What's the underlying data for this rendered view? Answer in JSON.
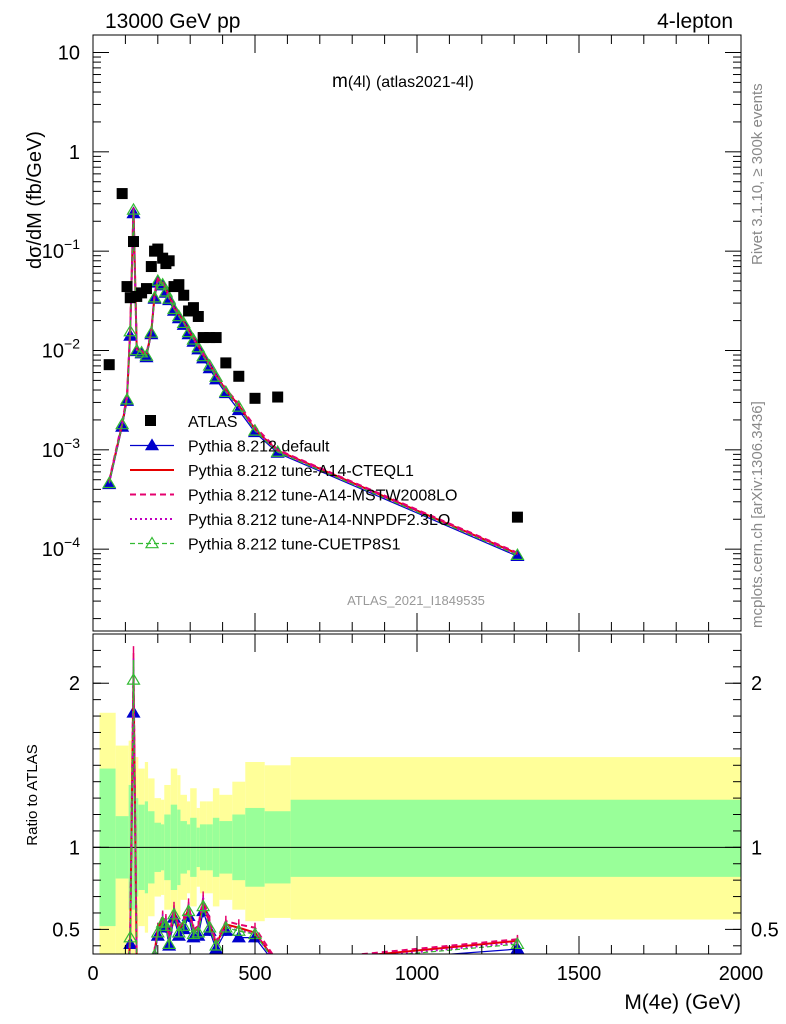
{
  "header": {
    "left": "13000 GeV pp",
    "right": "4-lepton",
    "plot_title_main": "m",
    "plot_title_sub": "(4l)",
    "plot_title_tag": "(atlas2021-4l)",
    "analysis_id": "ATLAS_2021_I1849535"
  },
  "side_labels": {
    "rivet": "Rivet 3.1.10, ≥ 300k events",
    "mcplots": "mcplots.cern.ch [arXiv:1306.3436]"
  },
  "axes": {
    "main_ylabel": "dσ/dM (fb/GeV)",
    "ratio_ylabel": "Ratio to ATLAS",
    "xlabel": "M(4e) (GeV)",
    "x_ticks": [
      "0",
      "500",
      "1000",
      "1500",
      "2000"
    ],
    "main_y_ticks": [
      "10",
      "1",
      "10",
      "10",
      "10",
      "10"
    ],
    "main_y_exps": [
      "",
      "",
      "−1",
      "−2",
      "−3",
      "−4"
    ],
    "ratio_y_ticks": [
      "2",
      "1",
      "0.5"
    ]
  },
  "chart_data": {
    "type": "line",
    "xlim": [
      0,
      2000
    ],
    "ylim_main": [
      1.5e-05,
      15
    ],
    "yscale_main": "log",
    "ylim_ratio": [
      0.35,
      2.3
    ],
    "legend_position": "lower-left",
    "series": [
      {
        "name": "ATLAS",
        "style": "data",
        "color": "#000000",
        "x": [
          50,
          90,
          105,
          115,
          125,
          135,
          150,
          165,
          180,
          190,
          200,
          215,
          225,
          235,
          250,
          265,
          280,
          295,
          310,
          325,
          340,
          360,
          380,
          410,
          450,
          500,
          570,
          1310
        ],
        "y": [
          0.0072,
          0.38,
          0.044,
          0.034,
          0.125,
          0.035,
          0.038,
          0.042,
          0.07,
          0.1,
          0.105,
          0.085,
          0.075,
          0.08,
          0.044,
          0.046,
          0.036,
          0.025,
          0.027,
          0.022,
          0.0135,
          0.0135,
          0.0135,
          0.0075,
          0.0055,
          0.0033,
          0.0034,
          0.00021
        ]
      },
      {
        "name": "Pythia 8.212 default",
        "color": "#0000cc",
        "x": [
          50,
          90,
          105,
          115,
          125,
          135,
          150,
          165,
          180,
          190,
          200,
          215,
          225,
          235,
          250,
          265,
          280,
          295,
          310,
          325,
          340,
          360,
          380,
          410,
          450,
          500,
          570,
          1310
        ],
        "y": [
          0.00045,
          0.0017,
          0.0031,
          0.014,
          0.24,
          0.0098,
          0.0093,
          0.0085,
          0.0145,
          0.033,
          0.048,
          0.045,
          0.038,
          0.032,
          0.025,
          0.021,
          0.018,
          0.0145,
          0.0122,
          0.0102,
          0.0083,
          0.0066,
          0.0051,
          0.0037,
          0.0025,
          0.0015,
          0.00093,
          8.5e-05
        ],
        "ratio": [
          0.06,
          0.004,
          0.07,
          0.41,
          1.82,
          0.28,
          0.25,
          0.2,
          0.21,
          0.33,
          0.46,
          0.53,
          0.51,
          0.4,
          0.57,
          0.46,
          0.5,
          0.58,
          0.45,
          0.46,
          0.61,
          0.49,
          0.38,
          0.49,
          0.45,
          0.45,
          0.27,
          0.38
        ]
      },
      {
        "name": "Pythia 8.212 tune-A14-CTEQL1",
        "color": "#e60000",
        "x": [
          50,
          90,
          105,
          115,
          125,
          135,
          150,
          165,
          180,
          190,
          200,
          215,
          225,
          235,
          250,
          265,
          280,
          295,
          310,
          325,
          340,
          360,
          380,
          410,
          450,
          500,
          570,
          1310
        ],
        "y": [
          0.00048,
          0.0018,
          0.0034,
          0.016,
          0.27,
          0.0102,
          0.0097,
          0.009,
          0.0155,
          0.036,
          0.052,
          0.048,
          0.041,
          0.035,
          0.027,
          0.023,
          0.0195,
          0.0158,
          0.0133,
          0.0111,
          0.009,
          0.0072,
          0.0056,
          0.004,
          0.0028,
          0.0016,
          0.00098,
          9e-05
        ],
        "ratio": [
          0.067,
          0.0047,
          0.077,
          0.47,
          2.06,
          0.29,
          0.26,
          0.21,
          0.22,
          0.36,
          0.5,
          0.57,
          0.55,
          0.44,
          0.61,
          0.5,
          0.54,
          0.63,
          0.49,
          0.5,
          0.67,
          0.53,
          0.41,
          0.53,
          0.51,
          0.48,
          0.29,
          0.43
        ]
      },
      {
        "name": "Pythia 8.212 tune-A14-MSTW2008LO",
        "color": "#e6006e",
        "x": [
          50,
          90,
          105,
          115,
          125,
          135,
          150,
          165,
          180,
          190,
          200,
          215,
          225,
          235,
          250,
          265,
          280,
          295,
          310,
          325,
          340,
          360,
          380,
          410,
          450,
          500,
          570,
          1310
        ],
        "y": [
          0.00049,
          0.0019,
          0.0035,
          0.0165,
          0.275,
          0.0104,
          0.0099,
          0.0092,
          0.016,
          0.037,
          0.053,
          0.049,
          0.042,
          0.036,
          0.0278,
          0.0236,
          0.02,
          0.0162,
          0.0136,
          0.0114,
          0.0093,
          0.0074,
          0.0057,
          0.0041,
          0.0029,
          0.0017,
          0.001,
          9.2e-05
        ],
        "ratio": [
          0.068,
          0.005,
          0.08,
          0.49,
          2.1,
          0.3,
          0.26,
          0.22,
          0.23,
          0.37,
          0.51,
          0.58,
          0.56,
          0.45,
          0.63,
          0.51,
          0.56,
          0.65,
          0.5,
          0.52,
          0.69,
          0.55,
          0.42,
          0.55,
          0.53,
          0.51,
          0.3,
          0.44
        ]
      },
      {
        "name": "Pythia 8.212 tune-A14-NNPDF2.3LO",
        "color": "#c000c0",
        "x": [
          50,
          90,
          105,
          115,
          125,
          135,
          150,
          165,
          180,
          190,
          200,
          215,
          225,
          235,
          250,
          265,
          280,
          295,
          310,
          325,
          340,
          360,
          380,
          410,
          450,
          500,
          570,
          1310
        ],
        "y": [
          0.00047,
          0.0018,
          0.0033,
          0.0158,
          0.265,
          0.0101,
          0.0096,
          0.0089,
          0.0153,
          0.035,
          0.051,
          0.047,
          0.04,
          0.034,
          0.0265,
          0.0226,
          0.0192,
          0.0155,
          0.013,
          0.0109,
          0.0089,
          0.0071,
          0.0055,
          0.0039,
          0.0027,
          0.0016,
          0.00096,
          8.8e-05
        ],
        "ratio": [
          0.065,
          0.0047,
          0.075,
          0.46,
          2.03,
          0.29,
          0.25,
          0.21,
          0.22,
          0.35,
          0.49,
          0.56,
          0.54,
          0.43,
          0.6,
          0.49,
          0.53,
          0.62,
          0.48,
          0.49,
          0.66,
          0.52,
          0.4,
          0.52,
          0.49,
          0.48,
          0.28,
          0.42
        ]
      },
      {
        "name": "Pythia 8.212 tune-CUETP8S1",
        "color": "#33bb33",
        "x": [
          50,
          90,
          105,
          115,
          125,
          135,
          150,
          165,
          180,
          190,
          200,
          215,
          225,
          235,
          250,
          265,
          280,
          295,
          310,
          325,
          340,
          360,
          380,
          410,
          450,
          500,
          570,
          1310
        ],
        "y": [
          0.00046,
          0.0018,
          0.0032,
          0.0155,
          0.26,
          0.01,
          0.0095,
          0.0088,
          0.015,
          0.034,
          0.05,
          0.046,
          0.039,
          0.033,
          0.026,
          0.022,
          0.0188,
          0.0152,
          0.0128,
          0.0107,
          0.0087,
          0.007,
          0.0054,
          0.0038,
          0.0027,
          0.00155,
          0.00095,
          8.7e-05
        ],
        "ratio": [
          0.064,
          0.0047,
          0.073,
          0.45,
          2.02,
          0.29,
          0.25,
          0.21,
          0.21,
          0.34,
          0.48,
          0.54,
          0.52,
          0.41,
          0.59,
          0.48,
          0.52,
          0.61,
          0.47,
          0.48,
          0.64,
          0.51,
          0.4,
          0.51,
          0.49,
          0.47,
          0.28,
          0.41
        ]
      }
    ],
    "uncertainty_bands": {
      "x_edges": [
        20,
        70,
        110,
        120,
        130,
        140,
        160,
        170,
        190,
        210,
        220,
        240,
        260,
        270,
        290,
        300,
        320,
        330,
        350,
        370,
        390,
        430,
        470,
        530,
        610,
        2000
      ],
      "inner_low": [
        0.52,
        0.81,
        0.62,
        0.62,
        0.7,
        0.74,
        0.72,
        0.78,
        0.85,
        0.86,
        0.8,
        0.74,
        0.77,
        0.84,
        0.86,
        0.82,
        0.88,
        0.86,
        0.86,
        0.82,
        0.84,
        0.8,
        0.76,
        0.78,
        0.82
      ],
      "inner_high": [
        1.48,
        1.19,
        1.38,
        1.38,
        1.3,
        1.26,
        1.28,
        1.22,
        1.15,
        1.14,
        1.2,
        1.26,
        1.23,
        1.16,
        1.14,
        1.18,
        1.12,
        1.14,
        1.14,
        1.18,
        1.16,
        1.2,
        1.24,
        1.22,
        1.29
      ],
      "outer_low": [
        0.35,
        0.35,
        0.35,
        0.35,
        0.45,
        0.52,
        0.48,
        0.58,
        0.7,
        0.71,
        0.62,
        0.52,
        0.56,
        0.68,
        0.72,
        0.64,
        0.76,
        0.72,
        0.72,
        0.64,
        0.68,
        0.62,
        0.55,
        0.57,
        0.56
      ],
      "outer_high": [
        1.82,
        1.62,
        1.65,
        1.65,
        1.55,
        1.48,
        1.52,
        1.42,
        1.3,
        1.29,
        1.38,
        1.48,
        1.44,
        1.32,
        1.28,
        1.36,
        1.24,
        1.28,
        1.28,
        1.36,
        1.32,
        1.4,
        1.52,
        1.5,
        1.55
      ],
      "inner_color": "#99ff99",
      "outer_color": "#ffff99"
    }
  }
}
